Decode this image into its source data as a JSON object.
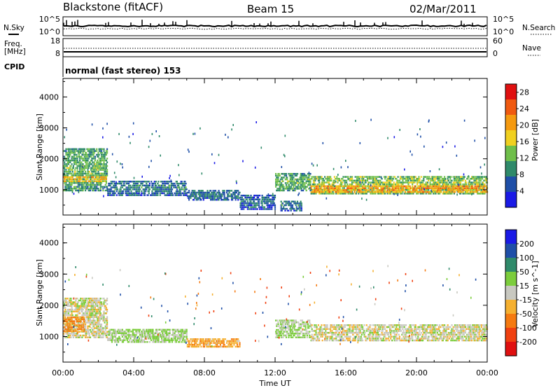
{
  "header": {
    "station": "Blackstone (fitACF)",
    "beam": "Beam 15",
    "date": "02/Mar/2011"
  },
  "top_panels": {
    "nsky_label": "N.Sky",
    "nsearch_label": "N.Search",
    "freq_label": "Freq.",
    "freq_unit": "[MHz]",
    "nave_label": "Nave",
    "cpid_label": "CPID",
    "cpid_text": "normal (fast stereo) 153",
    "noise_ticks_left": [
      "10^5",
      "10^0"
    ],
    "noise_ticks_right": [
      "10^5",
      "10^0"
    ],
    "freq_ticks": [
      "18",
      "8"
    ],
    "nave_ticks": [
      "60",
      "0"
    ]
  },
  "chart_data": [
    {
      "type": "heatmap",
      "title": "",
      "xlabel": "Time UT",
      "ylabel": "Slant Range [km]",
      "x_range_hours": [
        0,
        24
      ],
      "x_ticks": [
        "00:00",
        "04:00",
        "08:00",
        "12:00",
        "16:00",
        "20:00",
        "00:00"
      ],
      "ylim": [
        180,
        4600
      ],
      "y_ticks": [
        1000,
        2000,
        3000,
        4000
      ],
      "grid": false,
      "colorbar": {
        "label": "Power [dB]",
        "ticks": [
          4,
          8,
          12,
          16,
          20,
          24,
          28
        ],
        "range": [
          0,
          30
        ],
        "colors": [
          "#1a1ae6",
          "#1f4fa8",
          "#2f8a6a",
          "#6fbf4a",
          "#f0d020",
          "#f59a10",
          "#f05a10",
          "#e01010"
        ]
      },
      "echo_regions": [
        {
          "t_start": 0.0,
          "t_end": 2.5,
          "range_low": 1000,
          "range_high": 2400,
          "value": 10
        },
        {
          "t_start": 0.0,
          "t_end": 2.5,
          "range_low": 1300,
          "range_high": 1500,
          "value": 18
        },
        {
          "t_start": 2.5,
          "t_end": 7.0,
          "range_low": 850,
          "range_high": 1350,
          "value": 6
        },
        {
          "t_start": 7.0,
          "t_end": 10.0,
          "range_low": 700,
          "range_high": 1050,
          "value": 6
        },
        {
          "t_start": 10.0,
          "t_end": 12.0,
          "range_low": 400,
          "range_high": 900,
          "value": 5
        },
        {
          "t_start": 12.0,
          "t_end": 14.0,
          "range_low": 1000,
          "range_high": 1600,
          "value": 10
        },
        {
          "t_start": 12.3,
          "t_end": 13.5,
          "range_low": 350,
          "range_high": 700,
          "value": 6
        },
        {
          "t_start": 14.0,
          "t_end": 24.0,
          "range_low": 900,
          "range_high": 1500,
          "value": 12
        },
        {
          "t_start": 14.0,
          "t_end": 24.0,
          "range_low": 950,
          "range_high": 1200,
          "value": 20
        }
      ]
    },
    {
      "type": "heatmap",
      "title": "",
      "xlabel": "Time UT",
      "ylabel": "Slant Range [km]",
      "x_range_hours": [
        0,
        24
      ],
      "x_ticks": [
        "00:00",
        "04:00",
        "08:00",
        "12:00",
        "16:00",
        "20:00",
        "00:00"
      ],
      "ylim": [
        180,
        4600
      ],
      "y_ticks": [
        1000,
        2000,
        3000,
        4000
      ],
      "grid": false,
      "colorbar": {
        "label": "Velocity [m s^-1]",
        "ticks": [
          200,
          100,
          50,
          15,
          -15,
          -50,
          -100,
          -200
        ],
        "colors": [
          "#1a1ae6",
          "#1f4fa8",
          "#2f8a6a",
          "#7ccd3c",
          "#c8c8c0",
          "#f5b030",
          "#f57a10",
          "#f04010",
          "#e01010"
        ]
      },
      "echo_regions": [
        {
          "t_start": 0.0,
          "t_end": 2.5,
          "range_low": 1000,
          "range_high": 2300,
          "velocity": 0
        },
        {
          "t_start": 0.0,
          "t_end": 1.2,
          "range_low": 1200,
          "range_high": 1700,
          "velocity": -60
        },
        {
          "t_start": 2.5,
          "t_end": 7.0,
          "range_low": 850,
          "range_high": 1300,
          "velocity": 20
        },
        {
          "t_start": 7.0,
          "t_end": 10.0,
          "range_low": 700,
          "range_high": 1000,
          "velocity": -40
        },
        {
          "t_start": 12.0,
          "t_end": 14.0,
          "range_low": 1000,
          "range_high": 1600,
          "velocity": 20
        },
        {
          "t_start": 14.0,
          "t_end": 24.0,
          "range_low": 900,
          "range_high": 1450,
          "velocity": 0
        }
      ]
    }
  ]
}
